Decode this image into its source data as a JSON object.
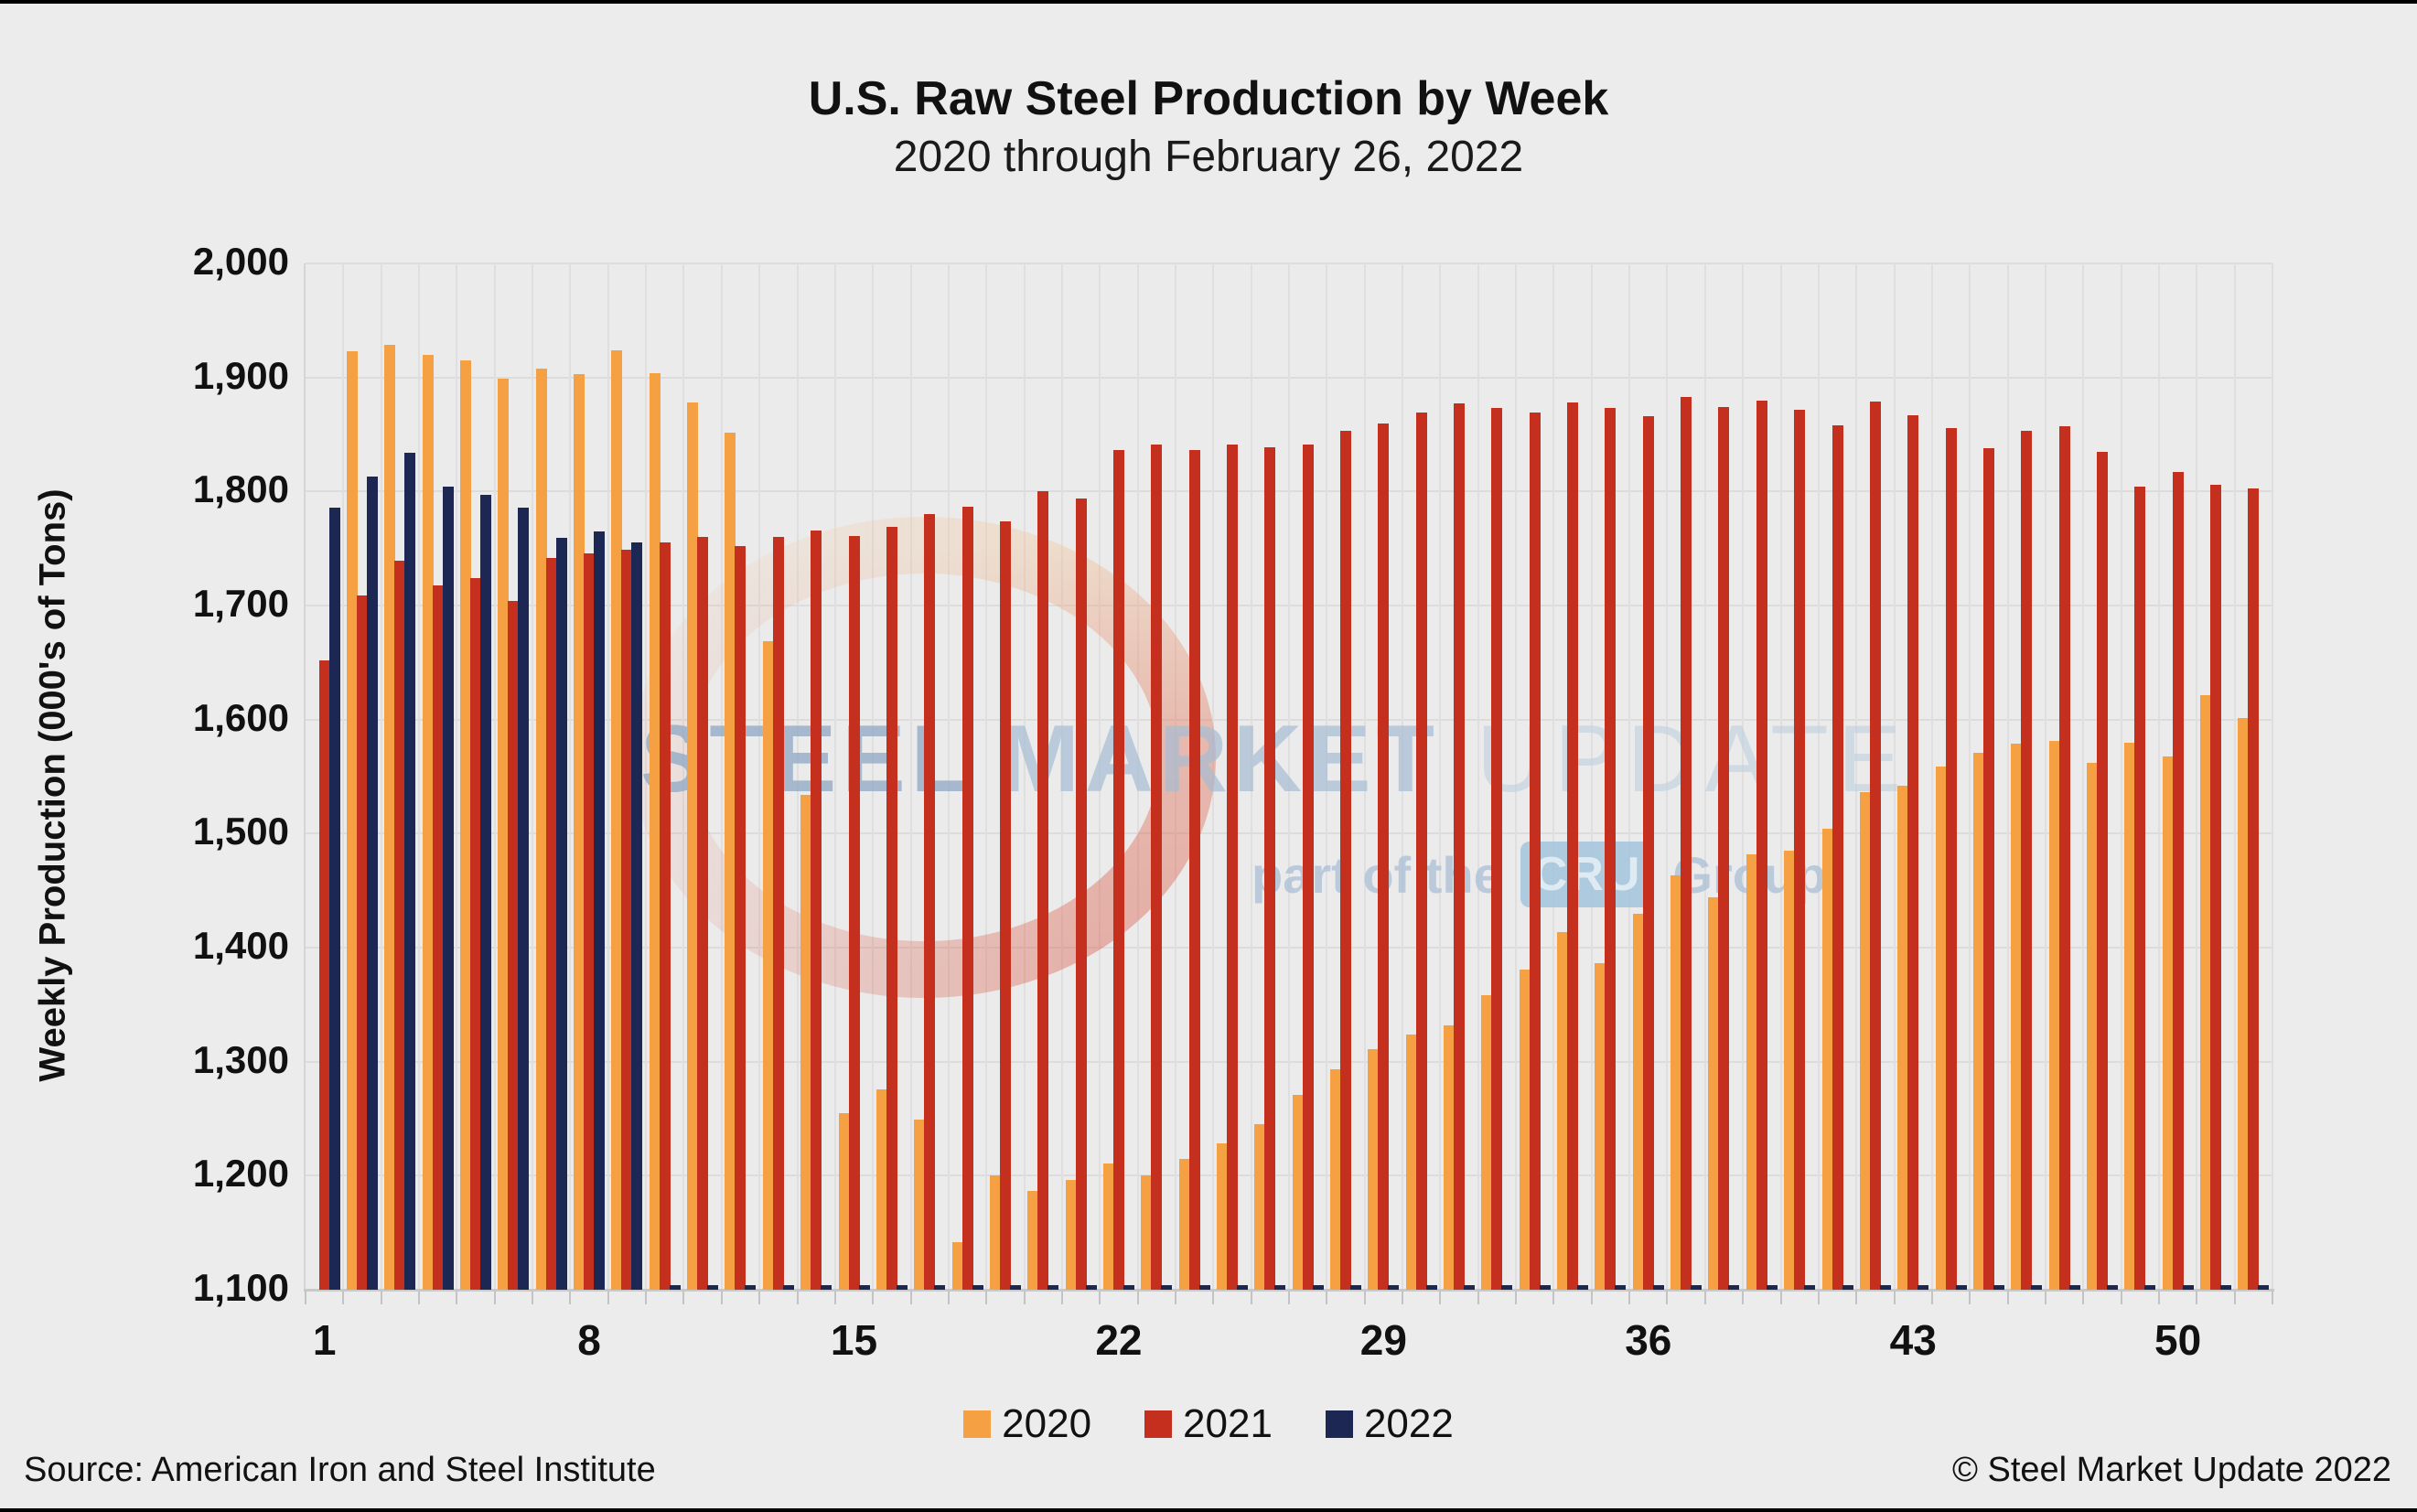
{
  "header": {
    "title": "U.S. Raw Steel Production by Week",
    "subtitle": "2020 through February 26, 2022"
  },
  "footer": {
    "source": "Source: American Iron and Steel Institute",
    "copyright": "© Steel Market Update 2022"
  },
  "watermark": {
    "word1": "STEEL",
    "word2": "MARKET",
    "word3": "UPDATE",
    "tagline_pre": "part of the",
    "tagline_box": "CRU",
    "tagline_post": "Group"
  },
  "chart_data": {
    "type": "bar",
    "title": "U.S. Raw Steel Production by Week",
    "subtitle": "2020 through February 26, 2022",
    "xlabel": "",
    "ylabel": "Weekly Production (000's of Tons)",
    "ylim": [
      1100,
      2000
    ],
    "ytick_step": 100,
    "grid": true,
    "legend_position": "bottom",
    "x": [
      1,
      2,
      3,
      4,
      5,
      6,
      7,
      8,
      9,
      10,
      11,
      12,
      13,
      14,
      15,
      16,
      17,
      18,
      19,
      20,
      21,
      22,
      23,
      24,
      25,
      26,
      27,
      28,
      29,
      30,
      31,
      32,
      33,
      34,
      35,
      36,
      37,
      38,
      39,
      40,
      41,
      42,
      43,
      44,
      45,
      46,
      47,
      48,
      49,
      50,
      51,
      52
    ],
    "x_tick_weeks": [
      1,
      8,
      15,
      22,
      29,
      36,
      43,
      50
    ],
    "series": [
      {
        "name": "2020",
        "color": "#F5A143",
        "values": [
          null,
          1923,
          1929,
          1920,
          1915,
          1899,
          1908,
          1903,
          1924,
          1904,
          1878,
          1852,
          1669,
          1534,
          1255,
          1276,
          1249,
          1142,
          1200,
          1187,
          1196,
          1211,
          1200,
          1215,
          1228,
          1245,
          1271,
          1293,
          1311,
          1324,
          1332,
          1358,
          1381,
          1414,
          1386,
          1430,
          1463,
          1444,
          1482,
          1485,
          1504,
          1536,
          1542,
          1559,
          1571,
          1579,
          1581,
          1562,
          1580,
          1568,
          1621,
          1601
        ]
      },
      {
        "name": "2021",
        "color": "#C42F1E",
        "values": [
          1652,
          1709,
          1739,
          1718,
          1724,
          1704,
          1742,
          1746,
          1749,
          1755,
          1760,
          1752,
          1760,
          1766,
          1761,
          1769,
          1780,
          1787,
          1774,
          1800,
          1794,
          1836,
          1841,
          1836,
          1841,
          1839,
          1841,
          1853,
          1860,
          1869,
          1877,
          1873,
          1869,
          1878,
          1873,
          1866,
          1883,
          1874,
          1880,
          1872,
          1858,
          1879,
          1867,
          1856,
          1838,
          1853,
          1857,
          1835,
          1804,
          1817,
          1806,
          1803
        ]
      },
      {
        "name": "2022",
        "color": "#1C2754",
        "values": [
          1786,
          1813,
          1834,
          1804,
          1797,
          1786,
          1759,
          1765,
          1755,
          0,
          0,
          0,
          0,
          0,
          0,
          0,
          0,
          0,
          0,
          0,
          0,
          0,
          0,
          0,
          0,
          0,
          0,
          0,
          0,
          0,
          0,
          0,
          0,
          0,
          0,
          0,
          0,
          0,
          0,
          0,
          0,
          0,
          0,
          0,
          0,
          0,
          0,
          0,
          0,
          0,
          0,
          0
        ]
      }
    ]
  }
}
